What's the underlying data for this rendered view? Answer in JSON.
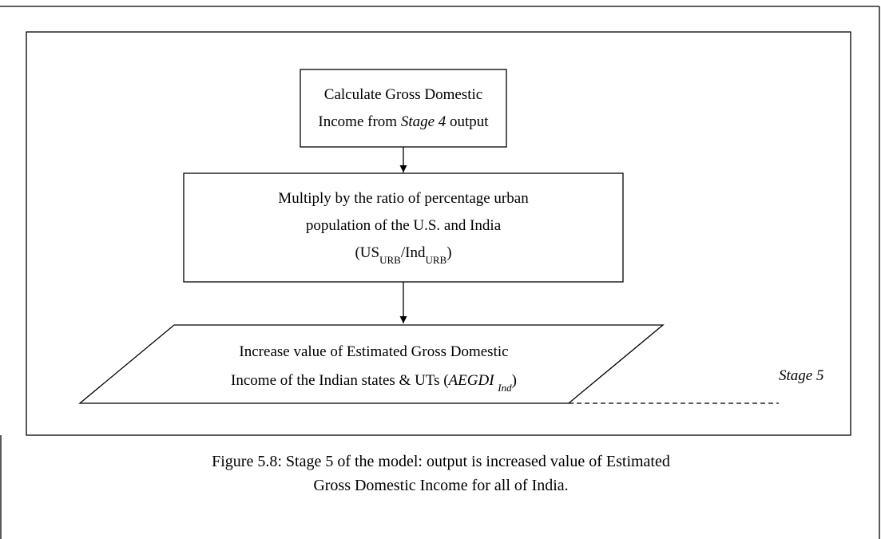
{
  "nodes": [
    {
      "line1": "Calculate Gross Domestic",
      "line2": [
        "Income from",
        "Stage 4",
        "output"
      ]
    },
    {
      "line1": "Multiply by the ratio of percentage urban",
      "line2": "population of the U.S. and India",
      "line3": [
        "(US",
        "URB",
        "/Ind",
        "URB",
        ")"
      ]
    },
    {
      "line1": "Increase value of Estimated Gross Domestic",
      "line2": [
        "Income of the Indian states & UTs (",
        "AEGDI",
        "Ind",
        ")"
      ]
    }
  ],
  "stage_label": "Stage 5",
  "caption": [
    "Figure 5.8: Stage 5 of the model: output is increased value of Estimated",
    "Gross Domestic Income for all of India."
  ]
}
